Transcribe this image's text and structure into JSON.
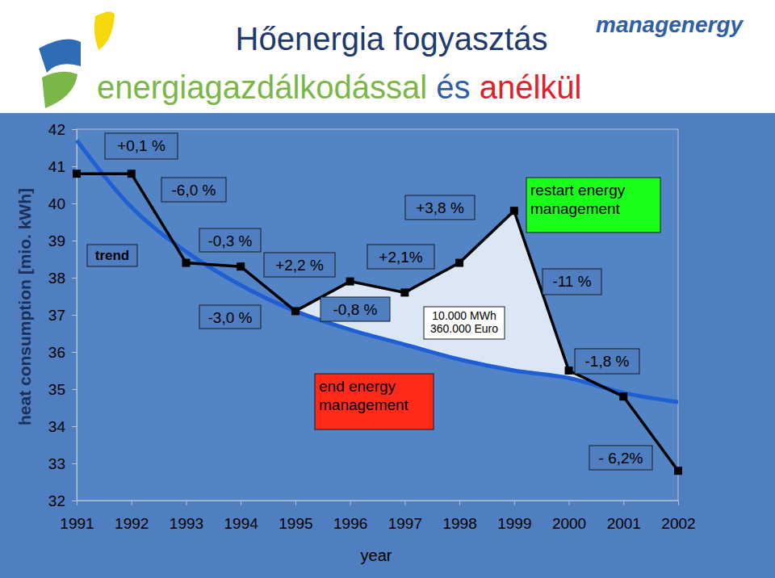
{
  "chart_data": {
    "type": "line",
    "title": "Hőenergia fogyasztás",
    "subtitle": "energiagazdálkodással és anélkül",
    "logo": "managenergy",
    "x_label": "year",
    "y_label": "heat consumption [mio. kWh]",
    "x": [
      1991,
      1992,
      1993,
      1994,
      1995,
      1996,
      1997,
      1998,
      1999,
      2000,
      2001,
      2002
    ],
    "xlim": [
      1991,
      2002
    ],
    "xticks": [
      1991,
      1992,
      1993,
      1994,
      1995,
      1996,
      1997,
      1998,
      1999,
      2000,
      2001,
      2002
    ],
    "ylim": [
      32,
      42
    ],
    "yticks": [
      32,
      33,
      34,
      35,
      36,
      37,
      38,
      39,
      40,
      41,
      42
    ],
    "grid": false,
    "series": [
      {
        "color": "#000000",
        "marker": "square",
        "line_style": "solid",
        "values": [
          40.8,
          40.8,
          38.4,
          38.3,
          37.1,
          37.9,
          37.6,
          38.4,
          39.8,
          35.5,
          34.8,
          32.8
        ]
      },
      {
        "name": "trend",
        "color": "#1f5fd6",
        "marker": "none",
        "line_style": "solid",
        "values": [
          41.7,
          39.9,
          38.7,
          37.8,
          37.1,
          36.6,
          36.2,
          35.8,
          35.5,
          35.3,
          34.9,
          34.65
        ]
      }
    ],
    "annotations": [
      {
        "text": "+0,1 %"
      },
      {
        "text": "-6,0 %"
      },
      {
        "text": "-0,3 %"
      },
      {
        "text": "+2,2 %"
      },
      {
        "text": "-3,0 %"
      },
      {
        "text": "-0,8 %"
      },
      {
        "text": "+2,1%"
      },
      {
        "text": "+3,8 %"
      },
      {
        "text": [
          "10.000 MWh",
          "360.000 Euro"
        ]
      },
      {
        "text": [
          "end energy",
          "management"
        ]
      },
      {
        "text": [
          "restart energy",
          "management"
        ]
      },
      {
        "text": "-11 %"
      },
      {
        "text": "-1,8 %"
      },
      {
        "text": "- 6,2%"
      }
    ]
  }
}
